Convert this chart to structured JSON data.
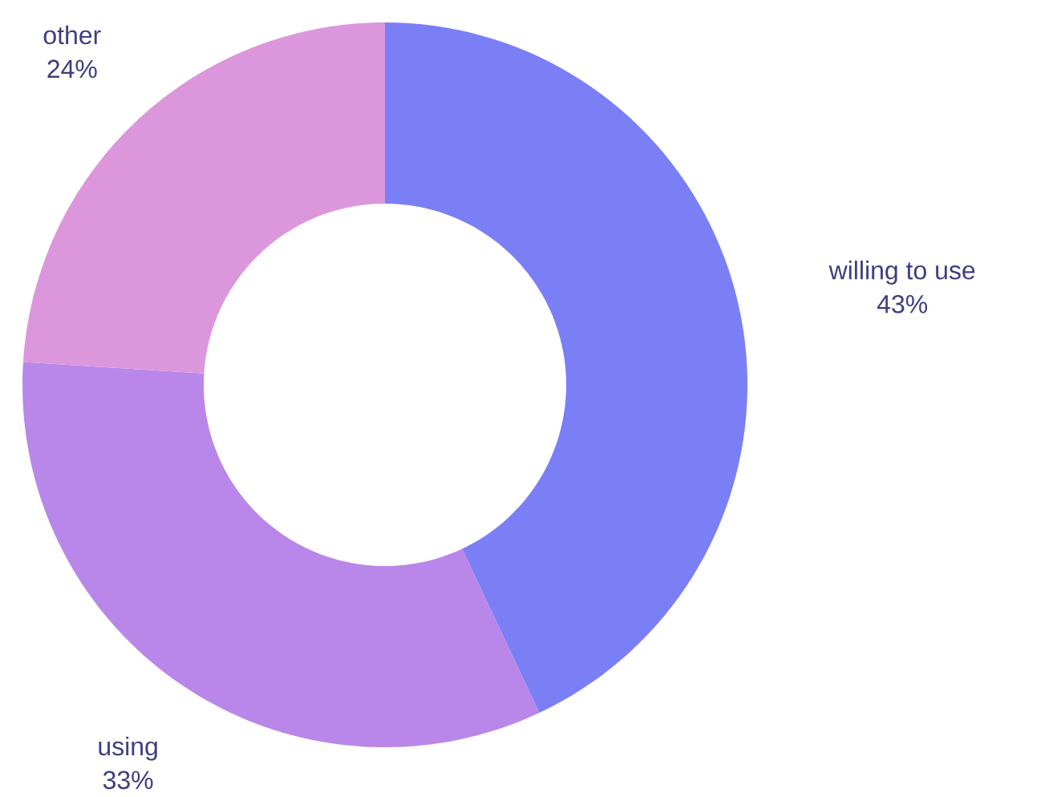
{
  "chart_data": {
    "type": "donut",
    "categories": [
      "willing to use",
      "using",
      "other"
    ],
    "values": [
      43,
      33,
      24
    ],
    "colors": [
      "#7b7ff6",
      "#b887e9",
      "#dc97dc"
    ],
    "value_labels": [
      "43%",
      "33%",
      "24%"
    ]
  }
}
